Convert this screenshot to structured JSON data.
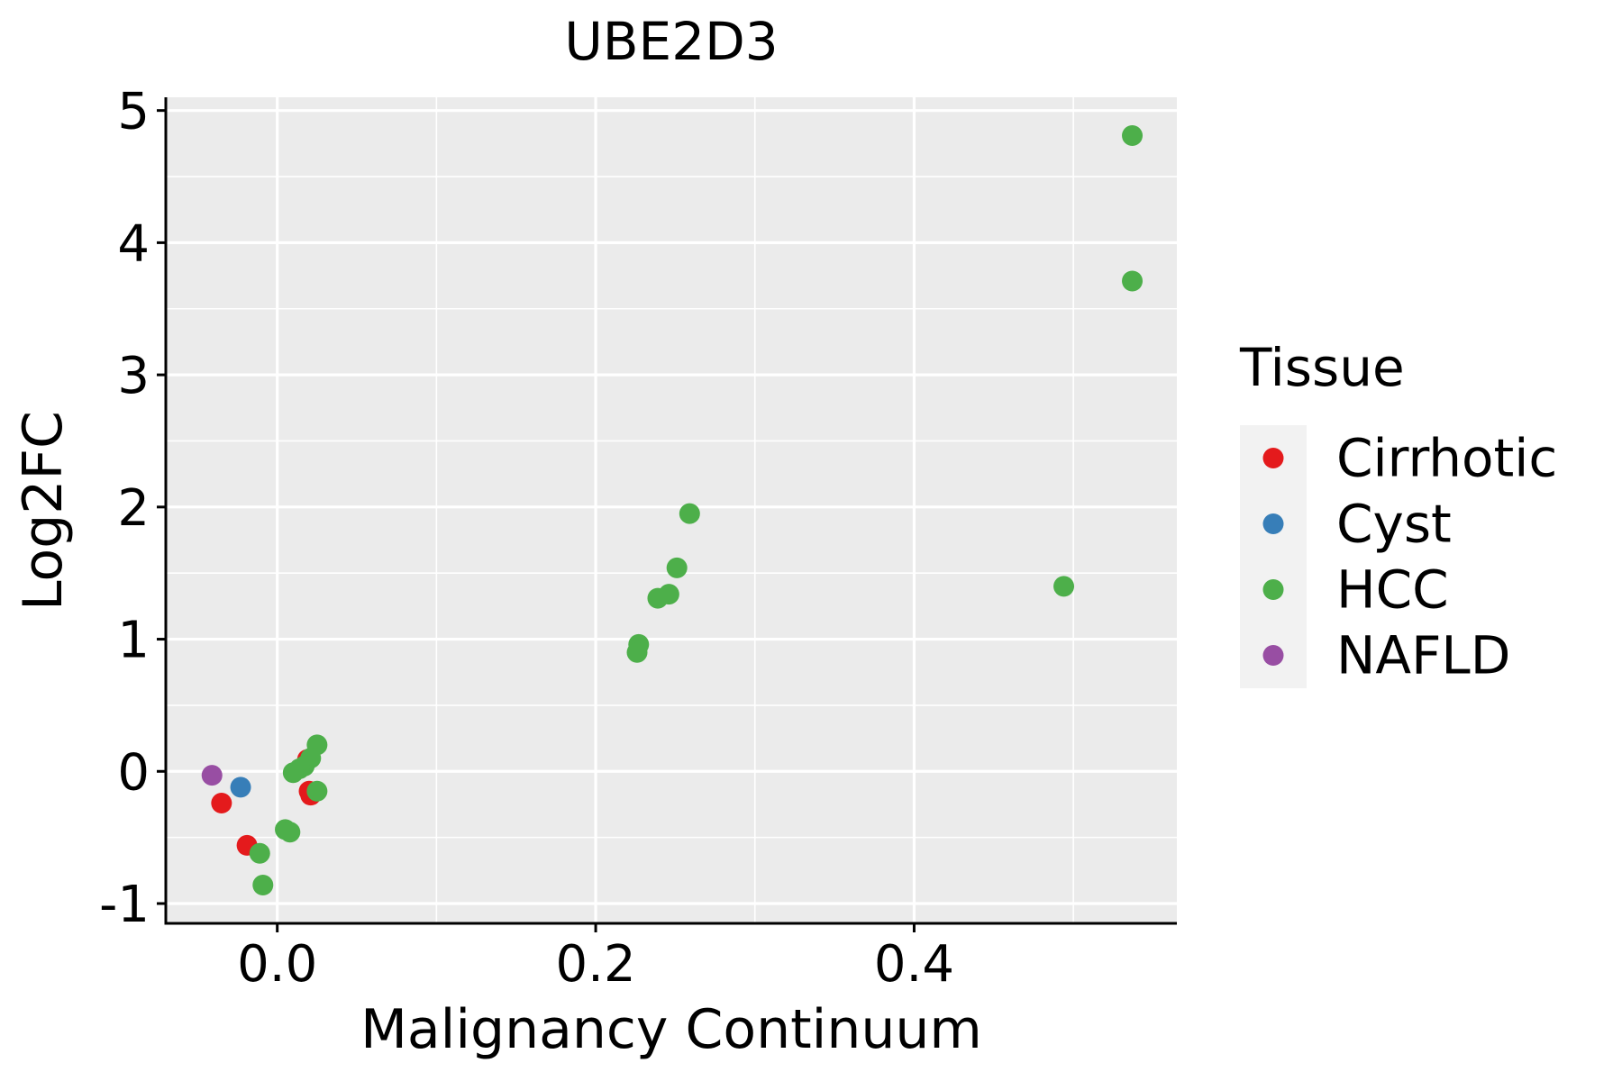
{
  "chart_data": {
    "type": "scatter",
    "title": "UBE2D3",
    "xlabel": "Malignancy Continuum",
    "ylabel": "Log2FC",
    "xlim": [
      -0.07,
      0.565
    ],
    "ylim": [
      -1.15,
      5.1
    ],
    "x_ticks": [
      0.0,
      0.2,
      0.4
    ],
    "x_tick_labels": [
      "0.0",
      "0.2",
      "0.4"
    ],
    "y_ticks": [
      -1,
      0,
      1,
      2,
      3,
      4,
      5
    ],
    "y_tick_labels": [
      "-1",
      "0",
      "1",
      "2",
      "3",
      "4",
      "5"
    ],
    "grid": true,
    "legend": {
      "title": "Tissue",
      "position": "right",
      "entries": [
        "Cirrhotic",
        "Cyst",
        "HCC",
        "NAFLD"
      ]
    },
    "colors": {
      "Cirrhotic": "#E41A1C",
      "Cyst": "#377EB8",
      "HCC": "#4DAF4A",
      "NAFLD": "#984EA3",
      "panel": "#EBEBEB",
      "grid": "#FFFFFF",
      "legend_key_bg": "#F2F2F2",
      "axis": "#000000"
    },
    "series": [
      {
        "name": "Cirrhotic",
        "points": [
          {
            "x": -0.035,
            "y": -0.24
          },
          {
            "x": -0.019,
            "y": -0.56
          },
          {
            "x": 0.019,
            "y": 0.09
          },
          {
            "x": 0.02,
            "y": -0.15
          },
          {
            "x": 0.021,
            "y": -0.18
          }
        ]
      },
      {
        "name": "Cyst",
        "points": [
          {
            "x": -0.023,
            "y": -0.12
          }
        ]
      },
      {
        "name": "HCC",
        "points": [
          {
            "x": 0.537,
            "y": 4.81
          },
          {
            "x": 0.537,
            "y": 3.71
          },
          {
            "x": 0.259,
            "y": 1.95
          },
          {
            "x": 0.251,
            "y": 1.54
          },
          {
            "x": 0.246,
            "y": 1.34
          },
          {
            "x": 0.239,
            "y": 1.31
          },
          {
            "x": 0.494,
            "y": 1.4
          },
          {
            "x": 0.227,
            "y": 0.96
          },
          {
            "x": 0.226,
            "y": 0.9
          },
          {
            "x": 0.025,
            "y": 0.2
          },
          {
            "x": 0.021,
            "y": 0.1
          },
          {
            "x": 0.017,
            "y": 0.04
          },
          {
            "x": 0.014,
            "y": 0.02
          },
          {
            "x": 0.01,
            "y": -0.01
          },
          {
            "x": 0.025,
            "y": -0.15
          },
          {
            "x": 0.005,
            "y": -0.44
          },
          {
            "x": 0.008,
            "y": -0.46
          },
          {
            "x": -0.011,
            "y": -0.62
          },
          {
            "x": -0.009,
            "y": -0.86
          }
        ]
      },
      {
        "name": "NAFLD",
        "points": [
          {
            "x": -0.041,
            "y": -0.03
          }
        ]
      }
    ]
  }
}
